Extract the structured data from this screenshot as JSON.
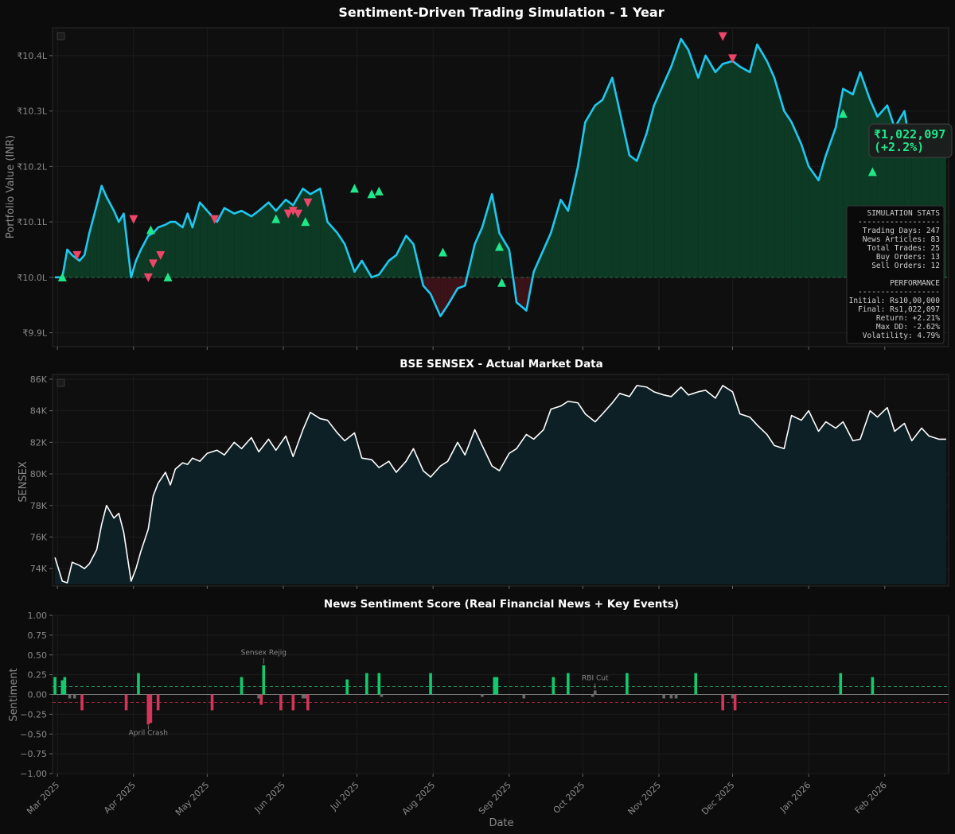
{
  "figure": {
    "background": "#0c0c0c",
    "panel_background": "#0f0f0f",
    "xlabel": "Date",
    "x_tick_labels": [
      "Mar 2025",
      "Apr 2025",
      "May 2025",
      "Jun 2025",
      "Jul 2025",
      "Aug 2025",
      "Sep 2025",
      "Oct 2025",
      "Nov 2025",
      "Dec 2025",
      "Jan 2026",
      "Feb 2026"
    ]
  },
  "chart_data": [
    {
      "type": "area",
      "title": "Sentiment-Driven Trading Simulation - 1 Year",
      "ylabel": "Portfolio Value (INR)",
      "ylim": [
        9.875,
        10.45
      ],
      "y_unit": "₹ lakh",
      "y_ticks": [
        9.9,
        10.0,
        10.1,
        10.2,
        10.3,
        10.4
      ],
      "y_tick_labels": [
        "₹9.9L",
        "₹10.0L",
        "₹10.1L",
        "₹10.2L",
        "₹10.3L",
        "₹10.4L"
      ],
      "baseline": 10.0,
      "colors": {
        "line": "#1ec8f0",
        "gain_fill": "#0d3a24",
        "loss_fill": "#3a1218",
        "buy": "#1ee88a",
        "sell": "#f0456a"
      },
      "series": [
        {
          "x": [
            "2025-02-28",
            "2025-03-03",
            "2025-03-05",
            "2025-03-07",
            "2025-03-10",
            "2025-03-12",
            "2025-03-14",
            "2025-03-17",
            "2025-03-19",
            "2025-03-21",
            "2025-03-24",
            "2025-03-26",
            "2025-03-28",
            "2025-03-31",
            "2025-04-02",
            "2025-04-04",
            "2025-04-07",
            "2025-04-09",
            "2025-04-11",
            "2025-04-14",
            "2025-04-16",
            "2025-04-18",
            "2025-04-21",
            "2025-04-23",
            "2025-04-25",
            "2025-04-28",
            "2025-05-01",
            "2025-05-05",
            "2025-05-08",
            "2025-05-12",
            "2025-05-15",
            "2025-05-19",
            "2025-05-22",
            "2025-05-26",
            "2025-05-29",
            "2025-06-02",
            "2025-06-05",
            "2025-06-09",
            "2025-06-12",
            "2025-06-16",
            "2025-06-19",
            "2025-06-23",
            "2025-06-26",
            "2025-06-30",
            "2025-07-03",
            "2025-07-07",
            "2025-07-10",
            "2025-07-14",
            "2025-07-17",
            "2025-07-21",
            "2025-07-24",
            "2025-07-28",
            "2025-07-31",
            "2025-08-04",
            "2025-08-07",
            "2025-08-11",
            "2025-08-14",
            "2025-08-18",
            "2025-08-21",
            "2025-08-25",
            "2025-08-28",
            "2025-09-01",
            "2025-09-04",
            "2025-09-08",
            "2025-09-11",
            "2025-09-15",
            "2025-09-18",
            "2025-09-22",
            "2025-09-25",
            "2025-09-29",
            "2025-10-02",
            "2025-10-06",
            "2025-10-09",
            "2025-10-13",
            "2025-10-16",
            "2025-10-20",
            "2025-10-23",
            "2025-10-27",
            "2025-10-30",
            "2025-11-03",
            "2025-11-06",
            "2025-11-10",
            "2025-11-13",
            "2025-11-17",
            "2025-11-20",
            "2025-11-24",
            "2025-11-27",
            "2025-12-01",
            "2025-12-04",
            "2025-12-08",
            "2025-12-11",
            "2025-12-15",
            "2025-12-18",
            "2025-12-22",
            "2025-12-25",
            "2025-12-29",
            "2026-01-01",
            "2026-01-05",
            "2026-01-08",
            "2026-01-12",
            "2026-01-15",
            "2026-01-19",
            "2026-01-22",
            "2026-01-26",
            "2026-01-29",
            "2026-02-02",
            "2026-02-05",
            "2026-02-09",
            "2026-02-12",
            "2026-02-16",
            "2026-02-19",
            "2026-02-23",
            "2026-02-26"
          ],
          "y": [
            10.0,
            10.0,
            10.05,
            10.04,
            10.03,
            10.04,
            10.08,
            10.13,
            10.165,
            10.145,
            10.12,
            10.1,
            10.115,
            10.0,
            10.03,
            10.05,
            10.075,
            10.08,
            10.09,
            10.095,
            10.1,
            10.1,
            10.09,
            10.115,
            10.09,
            10.135,
            10.12,
            10.1,
            10.125,
            10.115,
            10.12,
            10.11,
            10.12,
            10.135,
            10.12,
            10.14,
            10.13,
            10.16,
            10.15,
            10.16,
            10.1,
            10.08,
            10.06,
            10.01,
            10.03,
            10.0,
            10.005,
            10.03,
            10.04,
            10.075,
            10.06,
            9.985,
            9.97,
            9.93,
            9.95,
            9.98,
            9.985,
            10.06,
            10.09,
            10.15,
            10.08,
            10.05,
            9.955,
            9.94,
            10.01,
            10.05,
            10.08,
            10.14,
            10.12,
            10.2,
            10.28,
            10.31,
            10.32,
            10.36,
            10.3,
            10.22,
            10.21,
            10.26,
            10.31,
            10.35,
            10.38,
            10.43,
            10.41,
            10.36,
            10.4,
            10.37,
            10.385,
            10.39,
            10.38,
            10.37,
            10.42,
            10.39,
            10.36,
            10.3,
            10.28,
            10.24,
            10.2,
            10.175,
            10.22,
            10.27,
            10.34,
            10.33,
            10.37,
            10.32,
            10.29,
            10.31,
            10.27,
            10.3,
            10.22,
            10.24,
            10.23,
            10.22,
            10.22
          ]
        }
      ],
      "buy_orders": [
        {
          "x": "2025-03-03",
          "y": 10.0
        },
        {
          "x": "2025-04-08",
          "y": 10.085
        },
        {
          "x": "2025-05-29",
          "y": 10.105
        },
        {
          "x": "2025-06-10",
          "y": 10.1
        },
        {
          "x": "2025-06-30",
          "y": 10.16
        },
        {
          "x": "2025-07-07",
          "y": 10.15
        },
        {
          "x": "2025-07-10",
          "y": 10.155
        },
        {
          "x": "2025-08-05",
          "y": 10.045
        },
        {
          "x": "2025-08-28",
          "y": 10.055
        },
        {
          "x": "2025-08-29",
          "y": 9.99
        },
        {
          "x": "2026-01-15",
          "y": 10.295
        },
        {
          "x": "2026-01-27",
          "y": 10.19
        },
        {
          "x": "2025-04-15",
          "y": 10.0
        }
      ],
      "sell_orders": [
        {
          "x": "2025-03-09",
          "y": 10.04
        },
        {
          "x": "2025-04-01",
          "y": 10.105
        },
        {
          "x": "2025-04-07",
          "y": 10.0
        },
        {
          "x": "2025-04-09",
          "y": 10.025
        },
        {
          "x": "2025-04-12",
          "y": 10.04
        },
        {
          "x": "2025-05-04",
          "y": 10.105
        },
        {
          "x": "2025-06-03",
          "y": 10.115
        },
        {
          "x": "2025-06-07",
          "y": 10.115
        },
        {
          "x": "2025-06-11",
          "y": 10.135
        },
        {
          "x": "2025-11-27",
          "y": 10.435
        },
        {
          "x": "2025-12-01",
          "y": 10.395
        },
        {
          "x": "2025-06-05",
          "y": 10.12
        }
      ],
      "callout": {
        "value": "₹1,022,097",
        "change": "(+2.2%)",
        "color": "#1ee88a"
      },
      "stats_box": [
        "SIMULATION STATS",
        "------------------",
        "Trading Days: 247",
        "News Articles: 83",
        "Total Trades: 25",
        "Buy Orders: 13",
        "Sell Orders: 12",
        "",
        "PERFORMANCE",
        "------------------",
        "Initial: Rs10,00,000",
        "Final: Rs1,022,097",
        "Return: +2.21%",
        "Max DD: -2.62%",
        "Volatility: 4.79%"
      ]
    },
    {
      "type": "area",
      "title": "BSE SENSEX - Actual Market Data",
      "ylabel": "SENSEX",
      "ylim": [
        72900,
        86300
      ],
      "y_ticks": [
        74000,
        76000,
        78000,
        80000,
        82000,
        84000,
        86000
      ],
      "y_tick_labels": [
        "74K",
        "76K",
        "78K",
        "80K",
        "82K",
        "84K",
        "86K"
      ],
      "colors": {
        "line": "#ffffff",
        "fill": "#0c2026"
      },
      "series": [
        {
          "x": [
            "2025-02-28",
            "2025-03-03",
            "2025-03-05",
            "2025-03-07",
            "2025-03-10",
            "2025-03-12",
            "2025-03-14",
            "2025-03-17",
            "2025-03-19",
            "2025-03-21",
            "2025-03-24",
            "2025-03-26",
            "2025-03-28",
            "2025-03-31",
            "2025-04-02",
            "2025-04-04",
            "2025-04-07",
            "2025-04-09",
            "2025-04-11",
            "2025-04-14",
            "2025-04-16",
            "2025-04-18",
            "2025-04-21",
            "2025-04-23",
            "2025-04-25",
            "2025-04-28",
            "2025-05-01",
            "2025-05-05",
            "2025-05-08",
            "2025-05-12",
            "2025-05-15",
            "2025-05-19",
            "2025-05-22",
            "2025-05-26",
            "2025-05-29",
            "2025-06-02",
            "2025-06-05",
            "2025-06-09",
            "2025-06-12",
            "2025-06-16",
            "2025-06-19",
            "2025-06-23",
            "2025-06-26",
            "2025-06-30",
            "2025-07-03",
            "2025-07-07",
            "2025-07-10",
            "2025-07-14",
            "2025-07-17",
            "2025-07-21",
            "2025-07-24",
            "2025-07-28",
            "2025-07-31",
            "2025-08-04",
            "2025-08-07",
            "2025-08-11",
            "2025-08-14",
            "2025-08-18",
            "2025-08-21",
            "2025-08-25",
            "2025-08-28",
            "2025-09-01",
            "2025-09-04",
            "2025-09-08",
            "2025-09-11",
            "2025-09-15",
            "2025-09-18",
            "2025-09-22",
            "2025-09-25",
            "2025-09-29",
            "2025-10-02",
            "2025-10-06",
            "2025-10-09",
            "2025-10-13",
            "2025-10-16",
            "2025-10-20",
            "2025-10-23",
            "2025-10-27",
            "2025-10-30",
            "2025-11-03",
            "2025-11-06",
            "2025-11-10",
            "2025-11-13",
            "2025-11-17",
            "2025-11-20",
            "2025-11-24",
            "2025-11-27",
            "2025-12-01",
            "2025-12-04",
            "2025-12-08",
            "2025-12-11",
            "2025-12-15",
            "2025-12-18",
            "2025-12-22",
            "2025-12-25",
            "2025-12-29",
            "2026-01-01",
            "2026-01-05",
            "2026-01-08",
            "2026-01-12",
            "2026-01-15",
            "2026-01-19",
            "2026-01-22",
            "2026-01-26",
            "2026-01-29",
            "2026-02-02",
            "2026-02-05",
            "2026-02-09",
            "2026-02-12",
            "2026-02-16",
            "2026-02-19",
            "2026-02-23",
            "2026-02-26"
          ],
          "y": [
            74700,
            73200,
            73100,
            74400,
            74200,
            74000,
            74300,
            75200,
            76800,
            78000,
            77200,
            77500,
            76300,
            73200,
            74000,
            75100,
            76500,
            78600,
            79400,
            80100,
            79300,
            80300,
            80700,
            80600,
            81000,
            80800,
            81300,
            81500,
            81200,
            82000,
            81600,
            82300,
            81400,
            82200,
            81500,
            82400,
            81100,
            82800,
            83900,
            83500,
            83400,
            82600,
            82100,
            82600,
            81000,
            80900,
            80400,
            80800,
            80100,
            80800,
            81600,
            80200,
            79800,
            80500,
            80800,
            82000,
            81200,
            82800,
            81800,
            80500,
            80200,
            81300,
            81600,
            82500,
            82200,
            82800,
            84100,
            84300,
            84600,
            84500,
            83800,
            83300,
            83800,
            84500,
            85100,
            84900,
            85600,
            85500,
            85200,
            85000,
            84900,
            85500,
            85000,
            85200,
            85300,
            84800,
            85600,
            85200,
            83800,
            83600,
            83100,
            82500,
            81800,
            81600,
            83700,
            83400,
            84000,
            82700,
            83300,
            82900,
            83300,
            82100,
            82200,
            84000,
            83600,
            84200,
            82700,
            83200,
            82100,
            82900,
            82400,
            82200,
            82200
          ]
        }
      ]
    },
    {
      "type": "bar",
      "title": "News Sentiment Score (Real Financial News + Key Events)",
      "ylabel": "Sentiment",
      "ylim": [
        -1.0,
        1.0
      ],
      "y_ticks": [
        -1.0,
        -0.75,
        -0.5,
        -0.25,
        0.0,
        0.25,
        0.5,
        0.75,
        1.0
      ],
      "y_tick_labels": [
        "−1.00",
        "−0.75",
        "−0.50",
        "−0.25",
        "0.00",
        "0.25",
        "0.50",
        "0.75",
        "1.00"
      ],
      "thresholds": [
        0.1,
        -0.1
      ],
      "colors": {
        "positive": "#12c96e",
        "negative": "#d6355a",
        "neutral": "#6a6a6a",
        "upper_threshold": "#1e8a55",
        "lower_threshold": "#a02842"
      },
      "series": [
        {
          "x": [
            "2025-02-28",
            "2025-03-03",
            "2025-03-04",
            "2025-03-06",
            "2025-03-08",
            "2025-03-11",
            "2025-03-29",
            "2025-04-03",
            "2025-04-07",
            "2025-04-08",
            "2025-04-11",
            "2025-05-03",
            "2025-05-15",
            "2025-05-22",
            "2025-05-23",
            "2025-05-24",
            "2025-05-31",
            "2025-06-05",
            "2025-06-09",
            "2025-06-10",
            "2025-06-11",
            "2025-06-27",
            "2025-07-05",
            "2025-07-10",
            "2025-07-11",
            "2025-07-31",
            "2025-08-21",
            "2025-08-26",
            "2025-08-27",
            "2025-09-07",
            "2025-09-19",
            "2025-09-25",
            "2025-10-05",
            "2025-10-06",
            "2025-10-19",
            "2025-11-03",
            "2025-11-06",
            "2025-11-08",
            "2025-11-16",
            "2025-11-27",
            "2025-12-01",
            "2025-12-02",
            "2026-01-14",
            "2026-01-27"
          ],
          "y": [
            0.22,
            0.18,
            0.22,
            -0.05,
            -0.05,
            -0.2,
            -0.2,
            0.27,
            -0.38,
            -0.36,
            -0.2,
            -0.2,
            0.22,
            -0.05,
            -0.13,
            0.37,
            -0.2,
            -0.2,
            -0.05,
            -0.05,
            -0.2,
            0.19,
            0.27,
            0.27,
            -0.03,
            0.27,
            -0.03,
            0.22,
            0.22,
            -0.05,
            0.22,
            0.27,
            -0.03,
            0.05,
            0.27,
            -0.05,
            -0.05,
            -0.05,
            0.27,
            -0.2,
            -0.05,
            -0.2,
            0.27,
            0.22
          ]
        }
      ],
      "annotations": [
        {
          "text": "April Crash",
          "x": "2025-04-07",
          "y": -0.38
        },
        {
          "text": "Sensex Rejig",
          "x": "2025-05-24",
          "y": 0.37
        },
        {
          "text": "RBI Cut",
          "x": "2025-10-06",
          "y": 0.05
        }
      ]
    }
  ]
}
